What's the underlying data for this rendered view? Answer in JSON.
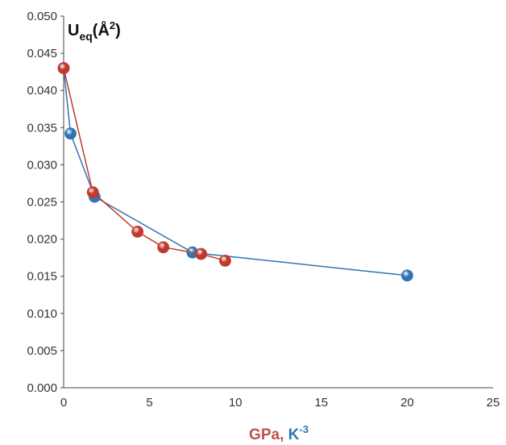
{
  "chart_data": {
    "type": "scatter",
    "title": "",
    "ylabel": {
      "main": "U",
      "sub": "eq",
      "unit": "(Å",
      "sup": "2",
      "close": ")"
    },
    "xlabel": {
      "part1": "GPa",
      "sep": ", ",
      "part2": "K",
      "sup": "-3"
    },
    "xlim": [
      0,
      25
    ],
    "ylim": [
      0.0,
      0.05
    ],
    "x_ticks": [
      0,
      5,
      10,
      15,
      20,
      25
    ],
    "x_tick_labels": [
      "0",
      "5",
      "10",
      "15",
      "20",
      "25"
    ],
    "y_ticks": [
      0.0,
      0.005,
      0.01,
      0.015,
      0.02,
      0.025,
      0.03,
      0.035,
      0.04,
      0.045,
      0.05
    ],
    "y_tick_labels": [
      "0.000",
      "0.005",
      "0.010",
      "0.015",
      "0.020",
      "0.025",
      "0.030",
      "0.035",
      "0.040",
      "0.045",
      "0.050"
    ],
    "grid": false,
    "legend": "none",
    "series": [
      {
        "color": "#2e75b6",
        "x": [
          0.0,
          0.4,
          1.8,
          7.5,
          20.0
        ],
        "y": [
          0.043,
          0.0342,
          0.0257,
          0.0182,
          0.0151
        ]
      },
      {
        "color": "#c0392b",
        "x": [
          0.0,
          1.7,
          4.3,
          5.8,
          8.0,
          9.4
        ],
        "y": [
          0.043,
          0.0263,
          0.021,
          0.0189,
          0.018,
          0.0171
        ]
      }
    ],
    "label_colors": {
      "gpa": "#c0504d",
      "k": "#2e75b6"
    }
  }
}
